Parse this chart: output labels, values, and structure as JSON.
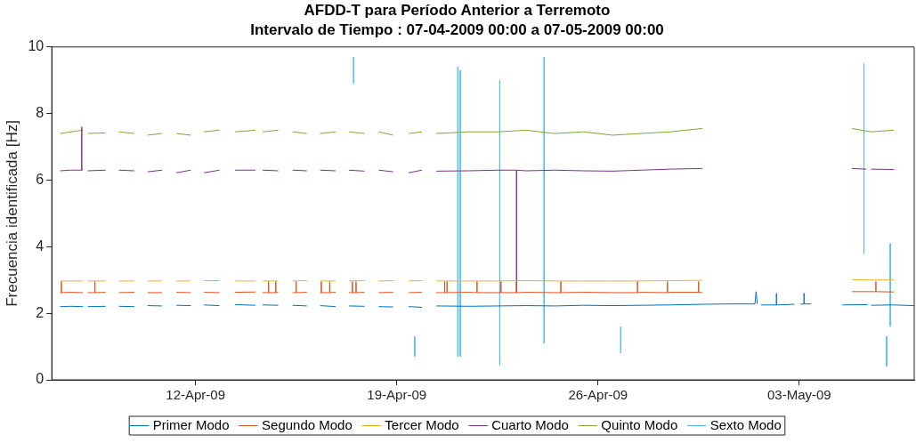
{
  "chart_data": {
    "type": "line",
    "title": "AFDD-T para Período Anterior a Terremoto",
    "subtitle": "Intervalo de Tiempo : 07-04-2009 00:00 a 07-05-2009 00:00",
    "ylabel": "Frecuencia identificada [Hz]",
    "legend": "bottom",
    "xlim": [
      "2009-04-07T00:00",
      "2009-05-07T00:00"
    ],
    "xticks": [
      {
        "value": "2009-04-12",
        "label": "12-Apr-09"
      },
      {
        "value": "2009-04-19",
        "label": "19-Apr-09"
      },
      {
        "value": "2009-04-26",
        "label": "26-Apr-09"
      },
      {
        "value": "2009-05-03",
        "label": "03-May-09"
      }
    ],
    "ylim": [
      0,
      10
    ],
    "yticks": [
      0,
      2,
      4,
      6,
      8,
      10
    ],
    "x": [
      "2009-04-07T07:00",
      "2009-04-07T16:00",
      "2009-04-08T02:00",
      "2009-04-08T04:00",
      "2009-04-08T06:00",
      "2009-04-08T21:00",
      "2009-04-09T02:00",
      "2009-04-09T08:00",
      "2009-04-09T21:00",
      "2009-04-10T02:00",
      "2009-04-10T08:00",
      "2009-04-10T20:00",
      "2009-04-11T02:00",
      "2009-04-11T08:00",
      "2009-04-11T20:00",
      "2009-04-12T02:00",
      "2009-04-12T07:00",
      "2009-04-12T20:00",
      "2009-04-13T02:00",
      "2009-04-13T09:00",
      "2009-04-14T02:00",
      "2009-04-14T05:00",
      "2009-04-14T08:00",
      "2009-04-14T21:00",
      "2009-04-15T03:00",
      "2009-04-15T09:00",
      "2009-04-15T21:00",
      "2009-04-16T03:00",
      "2009-04-16T08:00",
      "2009-04-16T21:00",
      "2009-04-17T03:00",
      "2009-04-17T08:00",
      "2009-04-17T21:00",
      "2009-04-18T03:00",
      "2009-04-18T09:00",
      "2009-04-18T21:00",
      "2009-04-19T03:00",
      "2009-04-19T10:00",
      "2009-04-19T21:00",
      "2009-04-20T03:00",
      "2009-04-20T09:00",
      "2009-04-21T12:00",
      "2009-04-22T12:00",
      "2009-04-23T12:00",
      "2009-04-24T12:00",
      "2009-04-25T12:00",
      "2009-04-26T12:00",
      "2009-04-27T12:00",
      "2009-04-28T12:00",
      "2009-04-29T15:00",
      "2009-05-02T00:00",
      "2009-05-04T20:00",
      "2009-05-05T12:00",
      "2009-05-06T07:00"
    ],
    "series": [
      {
        "name": "Primer Modo",
        "color": "#0072bd",
        "x": [
          "2009-04-07T07:00",
          "2009-04-07T16:00",
          "2009-04-08T02:00",
          "2009-04-08T04:00",
          "2009-04-08T06:00",
          "2009-04-08T21:00",
          "2009-04-09T02:00",
          "2009-04-09T08:00",
          "2009-04-09T21:00",
          "2009-04-10T02:00",
          "2009-04-10T08:00",
          "2009-04-10T20:00",
          "2009-04-11T02:00",
          "2009-04-11T08:00",
          "2009-04-11T20:00",
          "2009-04-12T02:00",
          "2009-04-12T07:00",
          "2009-04-12T20:00",
          "2009-04-13T02:00",
          "2009-04-13T09:00",
          "2009-04-14T02:00",
          "2009-04-14T05:00",
          "2009-04-14T08:00",
          "2009-04-14T21:00",
          "2009-04-15T03:00",
          "2009-04-15T09:00",
          "2009-04-15T21:00",
          "2009-04-16T03:00",
          "2009-04-16T08:00",
          "2009-04-16T21:00",
          "2009-04-17T03:00",
          "2009-04-17T08:00",
          "2009-04-17T21:00",
          "2009-04-18T03:00",
          "2009-04-18T09:00",
          "2009-04-18T21:00",
          "2009-04-19T03:00",
          "2009-04-19T10:00",
          "2009-04-19T21:00",
          "2009-04-20T03:00",
          "2009-04-20T09:00",
          "2009-04-21T12:00",
          "2009-04-22T12:00",
          "2009-04-23T12:00",
          "2009-04-24T12:00",
          "2009-04-25T12:00",
          "2009-04-26T12:00",
          "2009-04-27T12:00",
          "2009-04-28T12:00",
          "2009-04-29T15:00",
          "2009-04-30T12:00",
          "2009-05-01T11:00",
          "2009-05-01T12:00",
          "2009-05-01T13:00",
          "2009-05-01T14:00",
          "2009-05-01T16:00",
          "2009-05-02T05:00",
          "2009-05-02T05:00",
          "2009-05-02T05:00",
          "2009-05-02T20:00",
          "2009-05-02T22:00",
          "2009-05-03T01:00",
          "2009-05-03T04:00",
          "2009-05-03T04:00",
          "2009-05-03T04:00",
          "2009-05-03T10:00",
          "2009-05-03T14:00",
          "2009-05-04T12:00",
          "2009-05-05T09:00",
          "2009-05-05T11:00",
          "2009-05-05T12:00",
          "2009-05-06T06:00",
          "2009-05-07T00:00"
        ],
        "values": [
          2.2,
          2.21,
          2.2,
          null,
          2.2,
          2.21,
          null,
          2.21,
          2.2,
          null,
          2.23,
          2.22,
          null,
          2.24,
          2.23,
          null,
          2.25,
          2.23,
          null,
          2.26,
          2.24,
          null,
          2.25,
          2.24,
          null,
          2.24,
          2.22,
          null,
          2.23,
          2.2,
          null,
          2.22,
          2.21,
          null,
          2.2,
          2.19,
          null,
          2.2,
          2.18,
          null,
          2.22,
          2.21,
          2.22,
          2.23,
          2.22,
          2.24,
          2.23,
          2.24,
          2.25,
          2.27,
          2.28,
          2.28,
          2.65,
          2.28,
          null,
          2.25,
          2.25,
          2.6,
          2.25,
          2.27,
          null,
          2.27,
          2.28,
          2.6,
          2.28,
          2.28,
          null,
          2.25,
          2.26,
          null,
          2.24,
          2.25,
          2.23
        ]
      },
      {
        "name": "Segundo Modo",
        "color": "#d95319",
        "x": [
          "2009-04-07T07:00",
          "2009-04-07T08:00",
          "2009-04-07T08:00",
          "2009-04-07T08:00",
          "2009-04-07T16:00",
          "2009-04-08T02:00",
          "2009-04-08T04:00",
          "2009-04-08T06:00",
          "2009-04-08T12:00",
          "2009-04-08T12:00",
          "2009-04-08T12:00",
          "2009-04-08T21:00",
          "2009-04-09T02:00",
          "2009-04-09T08:00",
          "2009-04-09T21:00",
          "2009-04-10T02:00",
          "2009-04-10T08:00",
          "2009-04-10T20:00",
          "2009-04-11T02:00",
          "2009-04-11T08:00",
          "2009-04-11T20:00",
          "2009-04-12T02:00",
          "2009-04-12T07:00",
          "2009-04-12T20:00",
          "2009-04-13T02:00",
          "2009-04-13T09:00",
          "2009-04-14T02:00",
          "2009-04-14T05:00",
          "2009-04-14T08:00",
          "2009-04-14T13:00",
          "2009-04-14T13:00",
          "2009-04-14T13:00",
          "2009-04-14T19:00",
          "2009-04-14T19:00",
          "2009-04-14T19:00",
          "2009-04-14T21:00",
          "2009-04-15T03:00",
          "2009-04-15T09:00",
          "2009-04-15T12:00",
          "2009-04-15T12:00",
          "2009-04-15T12:00",
          "2009-04-15T21:00",
          "2009-04-16T03:00",
          "2009-04-16T08:00",
          "2009-04-16T09:00",
          "2009-04-16T09:00",
          "2009-04-16T09:00",
          "2009-04-16T16:00",
          "2009-04-16T16:00",
          "2009-04-16T16:00",
          "2009-04-16T21:00",
          "2009-04-17T03:00",
          "2009-04-17T08:00",
          "2009-04-17T11:00",
          "2009-04-17T11:00",
          "2009-04-17T11:00",
          "2009-04-17T14:00",
          "2009-04-17T14:00",
          "2009-04-17T14:00",
          "2009-04-17T21:00",
          "2009-04-18T03:00",
          "2009-04-18T09:00",
          "2009-04-18T21:00",
          "2009-04-19T03:00",
          "2009-04-19T10:00",
          "2009-04-19T21:00",
          "2009-04-20T03:00",
          "2009-04-20T09:00",
          "2009-04-20T16:00",
          "2009-04-20T16:00",
          "2009-04-20T16:00",
          "2009-04-20T18:00",
          "2009-04-20T18:00",
          "2009-04-20T18:00",
          "2009-04-21T12:00",
          "2009-04-21T19:00",
          "2009-04-21T19:00",
          "2009-04-21T19:00",
          "2009-04-22T12:00",
          "2009-04-22T15:00",
          "2009-04-22T15:00",
          "2009-04-22T15:00",
          "2009-04-23T04:00",
          "2009-04-23T04:00",
          "2009-04-23T04:00",
          "2009-04-23T12:00",
          "2009-04-24T12:00",
          "2009-04-24T17:00",
          "2009-04-24T17:00",
          "2009-04-24T17:00",
          "2009-04-25T12:00",
          "2009-04-26T12:00",
          "2009-04-27T09:00",
          "2009-04-27T09:00",
          "2009-04-27T09:00",
          "2009-04-27T12:00",
          "2009-04-28T10:00",
          "2009-04-28T10:00",
          "2009-04-28T10:00",
          "2009-04-28T12:00",
          "2009-04-29T12:00",
          "2009-04-29T12:00",
          "2009-04-29T12:00",
          "2009-04-29T15:00",
          "2009-05-02T00:00",
          "2009-05-04T20:00",
          "2009-05-05T16:00",
          "2009-05-05T16:00",
          "2009-05-05T16:00",
          "2009-05-06T07:00"
        ],
        "values": [
          2.62,
          2.62,
          2.95,
          2.62,
          2.63,
          2.62,
          null,
          2.62,
          2.62,
          2.95,
          2.62,
          2.63,
          null,
          2.62,
          2.63,
          null,
          2.62,
          2.62,
          null,
          2.63,
          2.62,
          null,
          2.63,
          2.62,
          null,
          2.63,
          2.64,
          null,
          2.62,
          2.62,
          2.95,
          2.62,
          2.62,
          2.95,
          2.62,
          2.63,
          null,
          2.62,
          2.62,
          2.95,
          2.62,
          2.63,
          null,
          2.62,
          2.62,
          2.95,
          2.62,
          2.62,
          2.95,
          2.62,
          2.63,
          null,
          2.62,
          2.62,
          2.95,
          2.62,
          2.62,
          2.95,
          2.62,
          2.63,
          null,
          2.62,
          2.63,
          null,
          2.62,
          2.63,
          null,
          2.62,
          2.62,
          2.95,
          2.62,
          2.62,
          2.95,
          2.62,
          2.63,
          2.62,
          2.95,
          2.62,
          2.62,
          2.62,
          2.95,
          2.62,
          2.62,
          2.95,
          2.62,
          2.63,
          2.62,
          2.62,
          2.95,
          2.62,
          2.63,
          2.62,
          2.62,
          2.95,
          2.62,
          2.63,
          2.62,
          2.95,
          2.62,
          2.63,
          2.63,
          2.95,
          2.63,
          2.62,
          null,
          2.65,
          2.65,
          2.95,
          2.65,
          2.64
        ]
      },
      {
        "name": "Tercer Modo",
        "color": "#edb120",
        "values": [
          2.97,
          2.97,
          2.97,
          null,
          2.97,
          2.97,
          null,
          2.97,
          2.97,
          null,
          2.97,
          2.97,
          null,
          2.97,
          2.97,
          null,
          2.98,
          2.98,
          null,
          2.97,
          2.97,
          null,
          2.97,
          2.97,
          null,
          2.97,
          2.98,
          null,
          2.97,
          2.97,
          null,
          2.97,
          2.98,
          null,
          2.97,
          2.98,
          null,
          2.97,
          2.98,
          null,
          2.97,
          2.97,
          2.97,
          2.98,
          2.97,
          2.97,
          2.97,
          2.97,
          2.98,
          2.99,
          null,
          3.01,
          3.0,
          3.0
        ]
      },
      {
        "name": "Cuarto Modo",
        "color": "#7e2f8e",
        "x": [
          "2009-04-07T07:00",
          "2009-04-07T16:00",
          "2009-04-08T01:00",
          "2009-04-08T01:00",
          "2009-04-08T01:00",
          "2009-04-08T02:00",
          "2009-04-08T04:00",
          "2009-04-08T06:00",
          "2009-04-08T21:00",
          "2009-04-09T02:00",
          "2009-04-09T08:00",
          "2009-04-09T21:00",
          "2009-04-10T02:00",
          "2009-04-10T08:00",
          "2009-04-10T20:00",
          "2009-04-11T02:00",
          "2009-04-11T08:00",
          "2009-04-11T20:00",
          "2009-04-12T02:00",
          "2009-04-12T07:00",
          "2009-04-12T20:00",
          "2009-04-13T02:00",
          "2009-04-13T09:00",
          "2009-04-14T02:00",
          "2009-04-14T05:00",
          "2009-04-14T08:00",
          "2009-04-14T21:00",
          "2009-04-15T03:00",
          "2009-04-15T09:00",
          "2009-04-15T21:00",
          "2009-04-16T03:00",
          "2009-04-16T08:00",
          "2009-04-16T21:00",
          "2009-04-17T03:00",
          "2009-04-17T08:00",
          "2009-04-17T21:00",
          "2009-04-18T03:00",
          "2009-04-18T09:00",
          "2009-04-18T21:00",
          "2009-04-19T03:00",
          "2009-04-19T10:00",
          "2009-04-19T21:00",
          "2009-04-20T03:00",
          "2009-04-20T09:00",
          "2009-04-21T12:00",
          "2009-04-22T12:00",
          "2009-04-23T04:00",
          "2009-04-23T04:00",
          "2009-04-23T04:00",
          "2009-04-23T12:00",
          "2009-04-24T12:00",
          "2009-04-25T12:00",
          "2009-04-26T12:00",
          "2009-04-27T12:00",
          "2009-04-28T12:00",
          "2009-04-29T15:00",
          "2009-05-02T00:00",
          "2009-05-04T20:00",
          "2009-05-05T08:00",
          "2009-05-05T10:00",
          "2009-05-05T12:00",
          "2009-05-06T07:00"
        ],
        "values": [
          6.28,
          6.3,
          6.3,
          7.6,
          6.3,
          6.32,
          null,
          6.28,
          6.3,
          null,
          6.3,
          6.28,
          null,
          6.25,
          6.3,
          null,
          6.22,
          6.3,
          null,
          6.22,
          6.3,
          null,
          6.3,
          6.3,
          null,
          6.3,
          6.28,
          null,
          6.3,
          6.28,
          null,
          6.3,
          6.28,
          null,
          6.3,
          6.27,
          null,
          6.3,
          6.25,
          null,
          6.22,
          6.3,
          null,
          6.27,
          6.28,
          6.3,
          6.3,
          2.62,
          6.3,
          6.28,
          6.3,
          6.28,
          6.27,
          6.3,
          6.33,
          6.35,
          null,
          6.35,
          6.33,
          null,
          6.33,
          6.32
        ]
      },
      {
        "name": "Quinto Modo",
        "color": "#77ac30",
        "values": [
          7.4,
          7.45,
          7.5,
          null,
          7.4,
          7.42,
          null,
          7.45,
          7.4,
          null,
          7.35,
          7.4,
          null,
          7.4,
          7.35,
          null,
          7.45,
          7.5,
          null,
          7.45,
          7.5,
          null,
          7.45,
          7.5,
          null,
          7.45,
          7.4,
          null,
          7.4,
          7.45,
          null,
          7.45,
          7.4,
          null,
          7.45,
          7.35,
          null,
          7.4,
          7.45,
          null,
          7.4,
          7.45,
          7.45,
          7.5,
          7.4,
          7.45,
          7.35,
          7.4,
          7.45,
          7.55,
          null,
          7.55,
          7.45,
          7.5
        ]
      },
      {
        "name": "Sexto Modo",
        "color": "#4dbeee",
        "x": [
          "2009-04-17T12:00",
          "2009-04-17T12:00",
          "2009-04-18T00:00",
          "2009-04-19T15:00",
          "2009-04-19T15:00",
          "2009-04-20T00:00",
          "2009-04-21T03:00",
          "2009-04-21T03:00",
          "2009-04-21T04:00",
          "2009-04-21T05:00",
          "2009-04-21T05:00",
          "2009-04-21T12:00",
          "2009-04-22T14:00",
          "2009-04-22T14:00",
          "2009-04-23T00:00",
          "2009-04-24T03:00",
          "2009-04-24T03:00",
          "2009-04-25T00:00",
          "2009-04-26T19:00",
          "2009-04-26T19:00",
          "2009-04-27T00:00",
          "2009-05-05T06:00",
          "2009-05-05T06:00",
          "2009-05-05T18:00",
          "2009-05-06T01:00",
          "2009-05-06T01:00",
          "2009-05-06T02:00",
          "2009-05-06T04:00",
          "2009-05-06T04:00"
        ],
        "values": [
          9.7,
          8.9,
          null,
          1.3,
          0.7,
          null,
          9.4,
          0.7,
          null,
          9.3,
          0.7,
          null,
          9.0,
          0.45,
          null,
          9.7,
          1.1,
          null,
          1.6,
          0.8,
          null,
          9.5,
          3.8,
          null,
          1.3,
          0.4,
          null,
          4.1,
          1.6
        ]
      }
    ]
  }
}
